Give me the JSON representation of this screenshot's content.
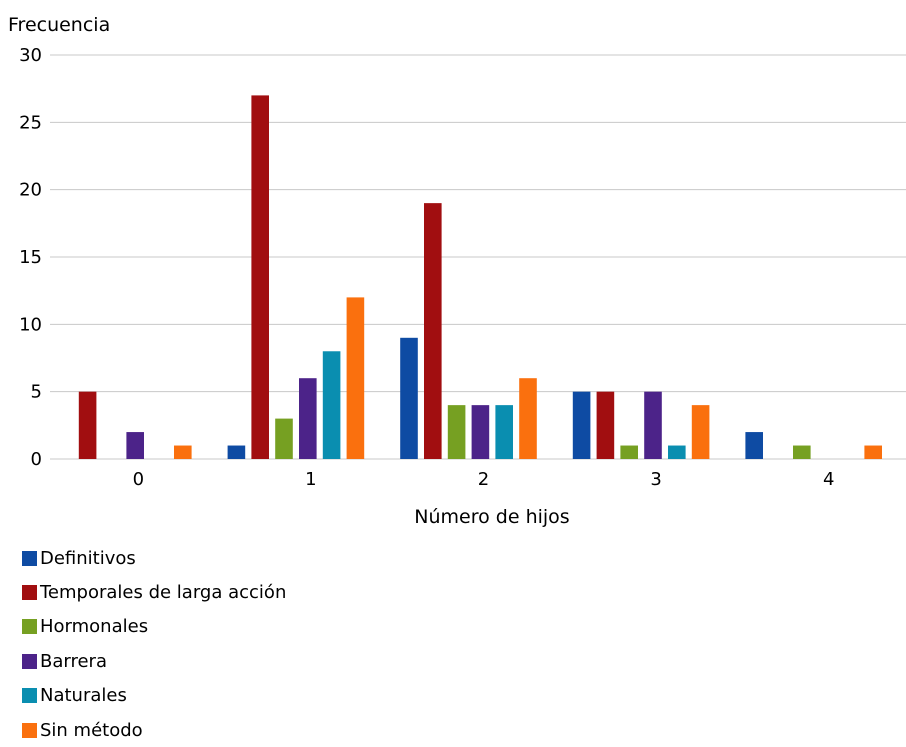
{
  "chart_data": {
    "type": "bar",
    "ylabel": "Frecuencia",
    "xlabel": "Número de hijos",
    "categories": [
      "0",
      "1",
      "2",
      "3",
      "4"
    ],
    "ylim": [
      0,
      30
    ],
    "yticks": [
      0,
      5,
      10,
      15,
      20,
      25,
      30
    ],
    "grid": true,
    "legend_position": "bottom-left",
    "series": [
      {
        "name": "Definitivos",
        "color": "#0e4ba3",
        "values": [
          0,
          1,
          9,
          5,
          2
        ]
      },
      {
        "name": "Temporales de larga acción",
        "color": "#a10e10",
        "values": [
          5,
          27,
          19,
          5,
          0
        ]
      },
      {
        "name": "Hormonales",
        "color": "#76a022",
        "values": [
          0,
          3,
          4,
          1,
          1
        ]
      },
      {
        "name": "Barrera",
        "color": "#4c2389",
        "values": [
          2,
          6,
          4,
          5,
          0
        ]
      },
      {
        "name": "Naturales",
        "color": "#0a8eb0",
        "values": [
          0,
          8,
          4,
          1,
          0
        ]
      },
      {
        "name": "Sin método",
        "color": "#fa700e",
        "values": [
          1,
          12,
          6,
          4,
          1
        ]
      }
    ]
  }
}
